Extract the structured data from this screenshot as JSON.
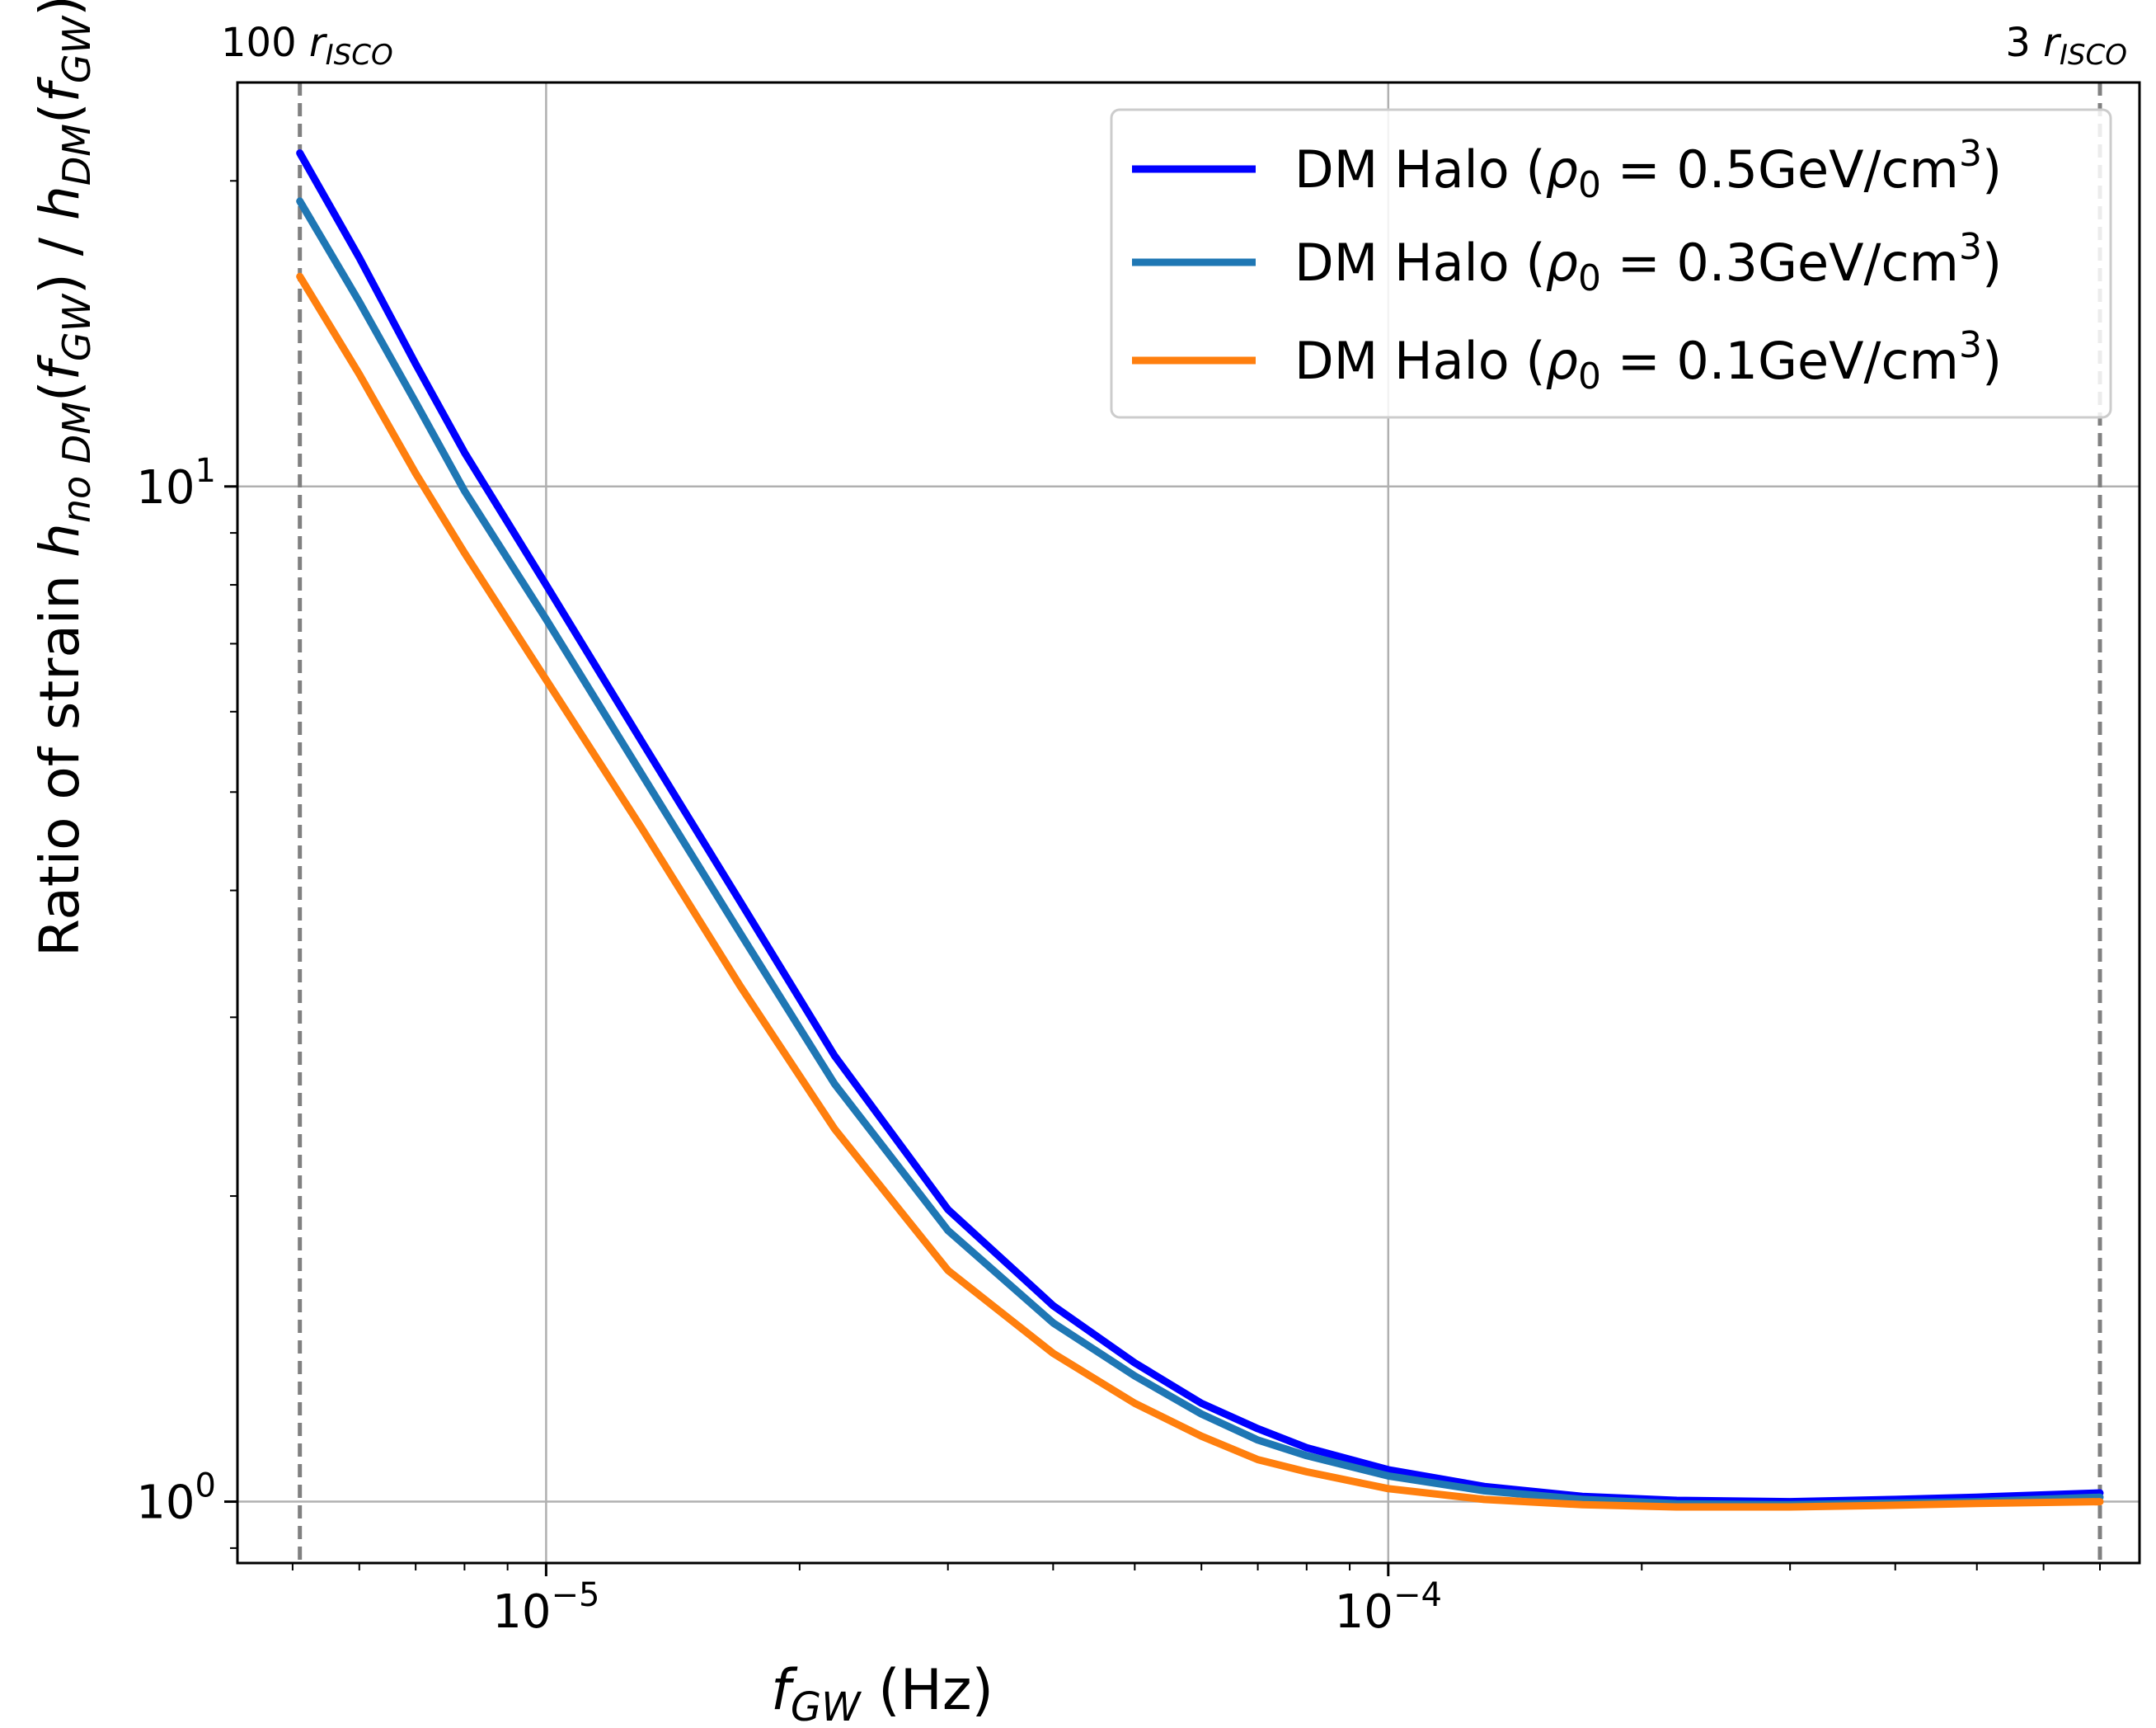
{
  "chart_data": {
    "type": "line",
    "xscale": "log",
    "yscale": "log",
    "xlim": [
      4.3e-06,
      0.00078
    ],
    "ylim": [
      0.87,
      25
    ],
    "grid": true,
    "xticks": [
      {
        "value": 1e-05,
        "base": "10",
        "exp": "−5"
      },
      {
        "value": 0.0001,
        "base": "10",
        "exp": "−4"
      }
    ],
    "yticks": [
      {
        "value": 1,
        "base": "10",
        "exp": "0"
      },
      {
        "value": 10,
        "base": "10",
        "exp": "1"
      }
    ],
    "xlabel": {
      "var": "f",
      "sub": "GW",
      "units": " (Hz)"
    },
    "ylabel": {
      "prefix": "Ratio of strain  ",
      "h1": "h",
      "sub1": "no DM",
      "f1": "f",
      "fsub1": "GW",
      "sep": " / ",
      "h2": "h",
      "sub2": "DM",
      "f2": "f",
      "fsub2": "GW"
    },
    "vlines": [
      {
        "x": 5.1e-06,
        "label_num": "100 ",
        "label_var": "r",
        "label_sub": "ISCO",
        "color": "#808080"
      },
      {
        "x": 0.0007,
        "label_num": "3 ",
        "label_var": "r",
        "label_sub": "ISCO",
        "color": "#808080"
      }
    ],
    "legend_position": "top-right",
    "series": [
      {
        "name": "DM Halo (ρ0 = 0.5GeV/cm3)",
        "legend_prefix": "DM Halo (",
        "rho": "ρ",
        "rho_sub": "0",
        "eq": " = 0.5GeV/cm",
        "sup": "3",
        "close": ")",
        "color": "#0000ff",
        "x": [
          5.1e-06,
          6e-06,
          7e-06,
          8e-06,
          1e-05,
          1.3e-05,
          1.7e-05,
          2.2e-05,
          3e-05,
          4e-05,
          5e-05,
          6e-05,
          7e-05,
          8e-05,
          0.0001,
          0.00013,
          0.00017,
          0.00022,
          0.0003,
          0.0004,
          0.0005,
          0.0007
        ],
        "y": [
          21.3,
          16.8,
          13.2,
          10.8,
          8.0,
          5.6,
          3.9,
          2.75,
          1.94,
          1.56,
          1.37,
          1.25,
          1.18,
          1.13,
          1.075,
          1.035,
          1.012,
          1.003,
          1.0,
          1.005,
          1.01,
          1.02
        ]
      },
      {
        "name": "DM Halo (ρ0 = 0.3GeV/cm3)",
        "legend_prefix": "DM Halo (",
        "rho": "ρ",
        "rho_sub": "0",
        "eq": " = 0.3GeV/cm",
        "sup": "3",
        "close": ")",
        "color": "#1f77b4",
        "x": [
          5.1e-06,
          6e-06,
          7e-06,
          8e-06,
          1e-05,
          1.3e-05,
          1.7e-05,
          2.2e-05,
          3e-05,
          4e-05,
          5e-05,
          6e-05,
          7e-05,
          8e-05,
          0.0001,
          0.00013,
          0.00017,
          0.00022,
          0.0003,
          0.0004,
          0.0005,
          0.0007
        ],
        "y": [
          19.1,
          15.2,
          12.1,
          9.9,
          7.4,
          5.2,
          3.63,
          2.58,
          1.85,
          1.5,
          1.33,
          1.22,
          1.15,
          1.11,
          1.06,
          1.025,
          1.005,
          0.995,
          0.993,
          0.997,
          1.0,
          1.01
        ]
      },
      {
        "name": "DM Halo (ρ0 = 0.1GeV/cm3)",
        "legend_prefix": "DM Halo (",
        "rho": "ρ",
        "rho_sub": "0",
        "eq": " = 0.1GeV/cm",
        "sup": "3",
        "close": ")",
        "color": "#ff7f0e",
        "x": [
          5.1e-06,
          6e-06,
          7e-06,
          8e-06,
          1e-05,
          1.3e-05,
          1.7e-05,
          2.2e-05,
          3e-05,
          4e-05,
          5e-05,
          6e-05,
          7e-05,
          8e-05,
          0.0001,
          0.00013,
          0.00017,
          0.00022,
          0.0003,
          0.0004,
          0.0005,
          0.0007
        ],
        "y": [
          16.1,
          12.9,
          10.3,
          8.6,
          6.45,
          4.6,
          3.22,
          2.33,
          1.69,
          1.4,
          1.25,
          1.16,
          1.1,
          1.07,
          1.03,
          1.005,
          0.993,
          0.988,
          0.988,
          0.992,
          0.996,
          1.0
        ]
      }
    ]
  }
}
